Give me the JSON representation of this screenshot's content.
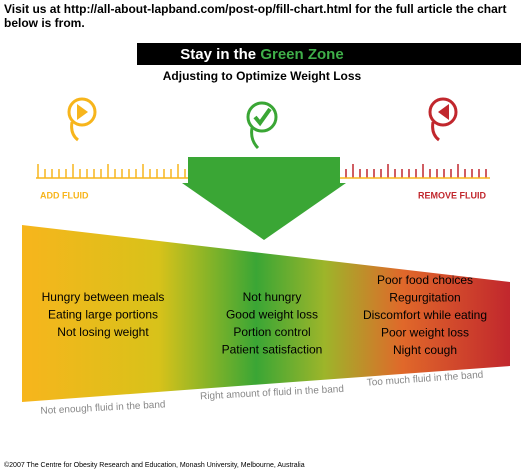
{
  "header": {
    "text": "Visit us at http://all-about-lapband.com/post-op/fill-chart.html for the full article the chart below is from."
  },
  "banner": {
    "title_prefix": "Stay in the ",
    "title_highlight": "Green Zone",
    "subtitle": "Adjusting to Optimize Weight Loss"
  },
  "fluid_labels": {
    "add": "ADD FLUID",
    "remove": "REMOVE FLUID"
  },
  "zones": [
    {
      "items": [
        "Hungry between meals",
        "Eating large portions",
        "Not losing weight"
      ],
      "caption": "Not enough fluid in the band"
    },
    {
      "items": [
        "Not hungry",
        "Good weight loss",
        "Portion control",
        "Patient satisfaction"
      ],
      "caption": "Right amount of fluid in the band"
    },
    {
      "items": [
        "Poor food choices",
        "Regurgitation",
        "Discomfort while eating",
        "Poor weight loss",
        "Night cough"
      ],
      "caption": "Too much fluid in the band"
    }
  ],
  "footer": {
    "copyright": "©2007 The Centre for Obesity Research and Education, Monash University, Melbourne, Australia"
  }
}
